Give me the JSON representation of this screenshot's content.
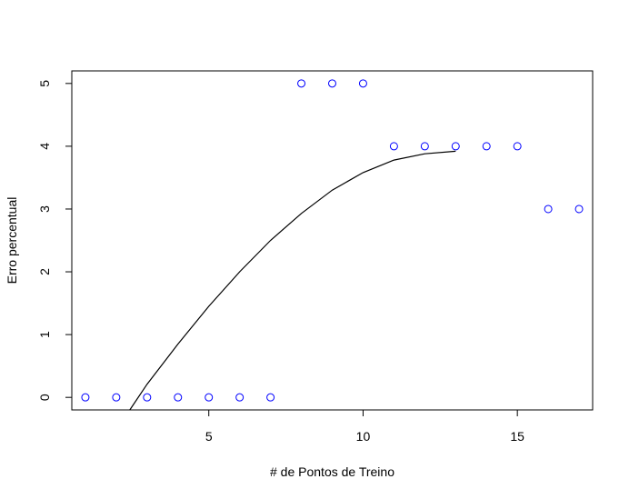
{
  "chart_data": {
    "type": "scatter",
    "xlabel": "# de Pontos de Treino",
    "ylabel": "Erro percentual",
    "xlim": [
      0.56,
      17.44
    ],
    "ylim": [
      -0.2,
      5.2
    ],
    "x_ticks": [
      5,
      10,
      15
    ],
    "y_ticks": [
      0,
      1,
      2,
      3,
      4,
      5
    ],
    "grid": false,
    "legend": "none",
    "point_color": "#0000ff",
    "points": {
      "x": [
        1,
        2,
        3,
        4,
        5,
        6,
        7,
        8,
        9,
        10,
        11,
        12,
        13,
        14,
        15,
        16,
        17
      ],
      "y": [
        0,
        0,
        0,
        0,
        0,
        0,
        0,
        5,
        5,
        5,
        4,
        4,
        4,
        4,
        4,
        3,
        3
      ]
    },
    "fitted_curve": {
      "color": "#000000",
      "x": [
        2.44,
        3,
        4,
        5,
        6,
        7,
        8,
        9,
        10,
        11,
        12,
        13
      ],
      "y": [
        -0.2,
        0.21,
        0.85,
        1.45,
        2.0,
        2.5,
        2.93,
        3.3,
        3.58,
        3.78,
        3.88,
        3.92
      ]
    }
  }
}
